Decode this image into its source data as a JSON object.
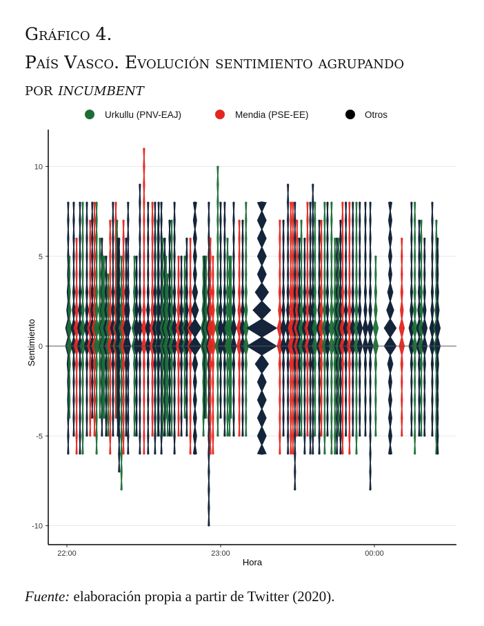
{
  "header": {
    "title_line1": "Gráfico 4.",
    "title_line2": "País Vasco. Evolución sentimiento agrupando",
    "title_line3_prefix": "por ",
    "title_line3_italic": "incumbent"
  },
  "source": {
    "label": "Fuente:",
    "text": " elaboración propia a partir de Twitter (2020)."
  },
  "chart_data": {
    "type": "violin",
    "xlabel": "Hora",
    "ylabel": "Sentimiento",
    "ylim": [
      -11.2,
      12
    ],
    "xlim_minutes_after_2200": [
      -7,
      152
    ],
    "yticks": [
      -10,
      -5,
      0,
      5,
      10
    ],
    "ytick_labels": [
      "-10",
      "-5",
      "0",
      "5",
      "10"
    ],
    "xticks_minutes": [
      0,
      60,
      120
    ],
    "xtick_labels": [
      "22:00",
      "23:00",
      "00:00"
    ],
    "grid": "horizontal",
    "legend_position": "top",
    "groups": [
      {
        "key": "U",
        "name": "Urkullu (PNV-EAJ)",
        "color": "#1a6e35"
      },
      {
        "key": "M",
        "name": "Mendia (PSE-EE)",
        "color": "#e3261f"
      },
      {
        "key": "O",
        "name": "Otros",
        "color": "#000000"
      }
    ],
    "otros_violin_color": "#14243a",
    "violins_fields": [
      "minute",
      "group",
      "min",
      "max",
      "density_level"
    ],
    "violins": [
      [
        0.5,
        "O",
        -6,
        8,
        1
      ],
      [
        1,
        "U",
        -4,
        5,
        1
      ],
      [
        2.7,
        "O",
        -5,
        8,
        1
      ],
      [
        3.8,
        "M",
        -6,
        6,
        1
      ],
      [
        5.1,
        "O",
        -6,
        8,
        1
      ],
      [
        6.2,
        "U",
        -6,
        8,
        1
      ],
      [
        7.8,
        "O",
        -5,
        8,
        1
      ],
      [
        9.1,
        "M",
        -5,
        7,
        1
      ],
      [
        9.9,
        "O",
        -4,
        8,
        1
      ],
      [
        10.8,
        "M",
        -5,
        8,
        1
      ],
      [
        11.6,
        "U",
        -6,
        8,
        1
      ],
      [
        12.9,
        "U",
        -4,
        6,
        1
      ],
      [
        13.7,
        "O",
        -5,
        6,
        1
      ],
      [
        14,
        "U",
        -4,
        5,
        1
      ],
      [
        14.5,
        "U",
        -4,
        5,
        1
      ],
      [
        15.3,
        "O",
        -5,
        5,
        1
      ],
      [
        16.1,
        "U",
        -5,
        4,
        1
      ],
      [
        16.9,
        "M",
        -6,
        7,
        1
      ],
      [
        18,
        "O",
        -5,
        8,
        1
      ],
      [
        19.1,
        "M",
        -4,
        8,
        1
      ],
      [
        19.6,
        "U",
        -4,
        7,
        1
      ],
      [
        19.9,
        "O",
        -5,
        6,
        1
      ],
      [
        20.4,
        "O",
        -7,
        6,
        1
      ],
      [
        21.3,
        "U",
        -8,
        5,
        1
      ],
      [
        22.1,
        "M",
        -6,
        7,
        1
      ],
      [
        23.1,
        "O",
        -5,
        6,
        1
      ],
      [
        23.9,
        "O",
        -6,
        8,
        1
      ],
      [
        26.4,
        "U",
        -5,
        5,
        1
      ],
      [
        27.2,
        "O",
        -5,
        5,
        1
      ],
      [
        28.5,
        "O",
        -6,
        9,
        1
      ],
      [
        30.1,
        "M",
        -6,
        11,
        1
      ],
      [
        31.7,
        "O",
        -6,
        8,
        1
      ],
      [
        33.4,
        "M",
        -5,
        8,
        1
      ],
      [
        34.4,
        "O",
        -6,
        8,
        1
      ],
      [
        35.5,
        "U",
        -5,
        7,
        1
      ],
      [
        35.8,
        "O",
        -5,
        8,
        1
      ],
      [
        36.9,
        "O",
        -6,
        8,
        1
      ],
      [
        37.4,
        "U",
        -5,
        6,
        1
      ],
      [
        38.2,
        "O",
        -5,
        6,
        1
      ],
      [
        38.7,
        "U",
        -4,
        5,
        1
      ],
      [
        39.3,
        "U",
        -5,
        4,
        1
      ],
      [
        40.1,
        "O",
        -5,
        7,
        1
      ],
      [
        40.9,
        "U",
        -5,
        7,
        1
      ],
      [
        42,
        "O",
        -6,
        8,
        1
      ],
      [
        43.6,
        "M",
        -5,
        5,
        1
      ],
      [
        44.7,
        "O",
        -5,
        5,
        1
      ],
      [
        46,
        "U",
        -4,
        5,
        1
      ],
      [
        46.8,
        "O",
        -5,
        6,
        1
      ],
      [
        48.2,
        "M",
        -6,
        6,
        1
      ],
      [
        50,
        "O",
        -6,
        8,
        2
      ],
      [
        53.3,
        "U",
        -5,
        5,
        1
      ],
      [
        53.8,
        "O",
        -4,
        5,
        1
      ],
      [
        54.3,
        "U",
        -4,
        5,
        1
      ],
      [
        55.4,
        "O",
        -10,
        8,
        1
      ],
      [
        56,
        "M",
        -6,
        6,
        1
      ],
      [
        57,
        "M",
        -6,
        5,
        1
      ],
      [
        58.9,
        "U",
        -5,
        10,
        1
      ],
      [
        60,
        "O",
        -4,
        8,
        1
      ],
      [
        61.6,
        "O",
        -5,
        8,
        1
      ],
      [
        62.7,
        "U",
        -5,
        6,
        1
      ],
      [
        63.5,
        "U",
        -5,
        5,
        1
      ],
      [
        64,
        "U",
        -4,
        5,
        1
      ],
      [
        65.1,
        "O",
        -5,
        8,
        1
      ],
      [
        67.3,
        "M",
        -5,
        7,
        1
      ],
      [
        68.6,
        "O",
        -5,
        7,
        1
      ],
      [
        69.9,
        "U",
        -5,
        8,
        1
      ],
      [
        76.1,
        "O",
        -6,
        8,
        3
      ],
      [
        83.1,
        "M",
        -6,
        7,
        1
      ],
      [
        84.5,
        "O",
        -5,
        7,
        1
      ],
      [
        86.3,
        "O",
        -6,
        9,
        1
      ],
      [
        87.4,
        "M",
        -6,
        8,
        1
      ],
      [
        88.2,
        "M",
        -6,
        8,
        1
      ],
      [
        89,
        "O",
        -8,
        8,
        1
      ],
      [
        89.8,
        "M",
        -5,
        7,
        1
      ],
      [
        90.7,
        "O",
        -5,
        6,
        1
      ],
      [
        91.5,
        "U",
        -5,
        7,
        1
      ],
      [
        92.8,
        "O",
        -6,
        6,
        1
      ],
      [
        93.9,
        "M",
        -5,
        8,
        1
      ],
      [
        95,
        "O",
        -6,
        8,
        1
      ],
      [
        96,
        "O",
        -6,
        9,
        1
      ],
      [
        96.8,
        "U",
        -5,
        8,
        1
      ],
      [
        98.5,
        "O",
        -6,
        7,
        1
      ],
      [
        99.3,
        "M",
        -5,
        7,
        1
      ],
      [
        100.6,
        "U",
        -6,
        8,
        1
      ],
      [
        101.7,
        "O",
        -5,
        8,
        1
      ],
      [
        103.3,
        "U",
        -6,
        8,
        1
      ],
      [
        104.6,
        "U",
        -6,
        6,
        1
      ],
      [
        105.4,
        "O",
        -6,
        6,
        1
      ],
      [
        106,
        "U",
        -5,
        6,
        1
      ],
      [
        106.8,
        "O",
        -6,
        7,
        1
      ],
      [
        107.6,
        "M",
        -6,
        8,
        1
      ],
      [
        108.9,
        "O",
        -5,
        8,
        1
      ],
      [
        110.3,
        "M",
        -6,
        8,
        1
      ],
      [
        111.6,
        "O",
        -5,
        8,
        1
      ],
      [
        113,
        "U",
        -6,
        8,
        1
      ],
      [
        114.3,
        "O",
        -5,
        8,
        1
      ],
      [
        116.5,
        "O",
        -5,
        8,
        1
      ],
      [
        118.4,
        "O",
        -8,
        8,
        1
      ],
      [
        120.5,
        "U",
        -5,
        5,
        1
      ],
      [
        126.2,
        "O",
        -6,
        8,
        2
      ],
      [
        130.7,
        "M",
        -5,
        6,
        1
      ],
      [
        134.5,
        "O",
        -5,
        8,
        1
      ],
      [
        135.8,
        "U",
        -6,
        8,
        1
      ],
      [
        137.5,
        "O",
        -5,
        7,
        1
      ],
      [
        138.3,
        "U",
        -5,
        7,
        1
      ],
      [
        139.6,
        "O",
        -5,
        6,
        1
      ],
      [
        142.6,
        "O",
        -5,
        8,
        1
      ],
      [
        144.2,
        "U",
        -6,
        7,
        1
      ],
      [
        144.7,
        "O",
        -6,
        6,
        1
      ]
    ]
  }
}
